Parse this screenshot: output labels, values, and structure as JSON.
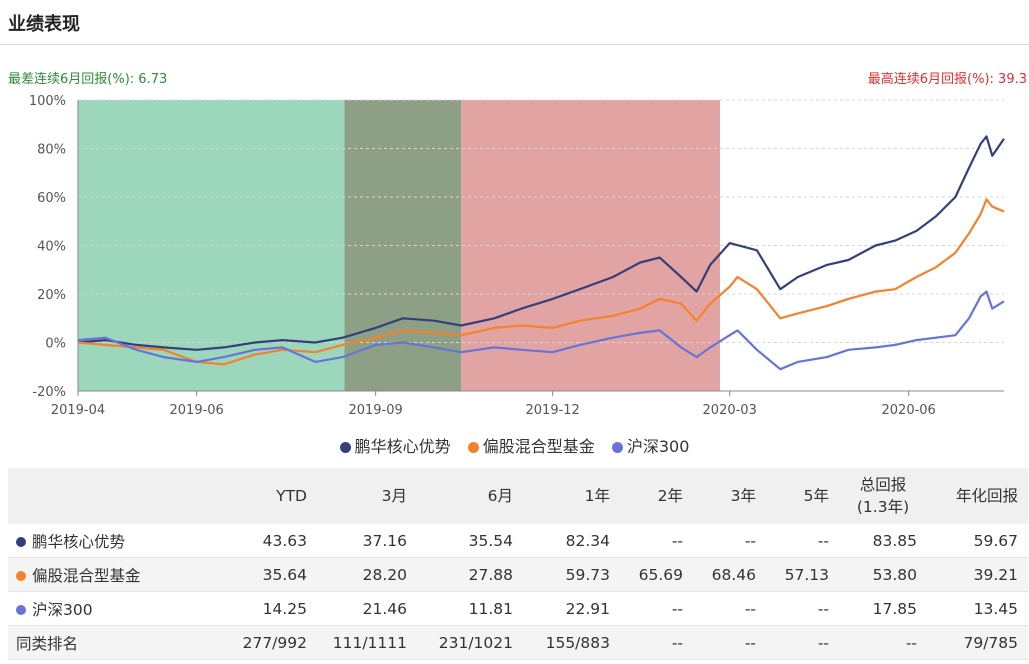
{
  "section_title": "业绩表现",
  "stats": {
    "worst_6m_label": "最差连续6月回报(%):",
    "worst_6m_value": "6.73",
    "best_6m_label": "最高连续6月回报(%):",
    "best_6m_value": "39.3"
  },
  "colors": {
    "fund": "#33407a",
    "peer": "#f5822a",
    "index": "#6674d8",
    "band_green": "#9dd7bb",
    "band_olive": "#8da085",
    "band_red": "#e2a3a3"
  },
  "chart_data": {
    "type": "line",
    "y_ticks": [
      "100%",
      "80%",
      "60%",
      "40%",
      "20%",
      "0%",
      "-20%"
    ],
    "y_tick_values": [
      100,
      80,
      60,
      40,
      20,
      0,
      -20
    ],
    "ylim": [
      -20,
      100
    ],
    "xlim": [
      "2019-04-01",
      "2020-07-20"
    ],
    "x_tick_labels": [
      "2019-04",
      "2019-06",
      "2019-09",
      "2019-12",
      "2020-03",
      "2020-06"
    ],
    "x_tick_dates": [
      "2019-04-01",
      "2019-06-01",
      "2019-09-01",
      "2019-12-01",
      "2020-03-01",
      "2020-06-01"
    ],
    "grid": true,
    "highlight_bands": [
      {
        "from": "2019-04-01",
        "to": "2019-08-16",
        "color": "#9dd7bb"
      },
      {
        "from": "2019-08-16",
        "to": "2019-10-15",
        "color": "#8da085"
      },
      {
        "from": "2019-10-15",
        "to": "2020-02-25",
        "color": "#e2a3a3"
      }
    ],
    "series": [
      {
        "name": "鹏华核心优势",
        "color": "#33407a",
        "points": [
          [
            "2019-04-01",
            0
          ],
          [
            "2019-04-15",
            1
          ],
          [
            "2019-05-01",
            -1
          ],
          [
            "2019-05-15",
            -2
          ],
          [
            "2019-06-01",
            -3
          ],
          [
            "2019-06-15",
            -2
          ],
          [
            "2019-07-01",
            0
          ],
          [
            "2019-07-15",
            1
          ],
          [
            "2019-08-01",
            0
          ],
          [
            "2019-08-15",
            2
          ],
          [
            "2019-09-01",
            6
          ],
          [
            "2019-09-15",
            10
          ],
          [
            "2019-10-01",
            9
          ],
          [
            "2019-10-15",
            7
          ],
          [
            "2019-11-01",
            10
          ],
          [
            "2019-11-15",
            14
          ],
          [
            "2019-12-01",
            18
          ],
          [
            "2019-12-15",
            22
          ],
          [
            "2020-01-01",
            27
          ],
          [
            "2020-01-15",
            33
          ],
          [
            "2020-01-25",
            35
          ],
          [
            "2020-02-05",
            27
          ],
          [
            "2020-02-13",
            21
          ],
          [
            "2020-02-20",
            32
          ],
          [
            "2020-03-01",
            41
          ],
          [
            "2020-03-15",
            38
          ],
          [
            "2020-03-27",
            22
          ],
          [
            "2020-04-05",
            27
          ],
          [
            "2020-04-20",
            32
          ],
          [
            "2020-05-01",
            34
          ],
          [
            "2020-05-15",
            40
          ],
          [
            "2020-05-25",
            42
          ],
          [
            "2020-06-05",
            46
          ],
          [
            "2020-06-15",
            52
          ],
          [
            "2020-06-25",
            60
          ],
          [
            "2020-07-02",
            72
          ],
          [
            "2020-07-08",
            82
          ],
          [
            "2020-07-11",
            85
          ],
          [
            "2020-07-14",
            77
          ],
          [
            "2020-07-20",
            84
          ]
        ]
      },
      {
        "name": "偏股混合型基金",
        "color": "#f5822a",
        "points": [
          [
            "2019-04-01",
            0
          ],
          [
            "2019-04-15",
            -1
          ],
          [
            "2019-05-01",
            -2
          ],
          [
            "2019-05-15",
            -3
          ],
          [
            "2019-06-01",
            -8
          ],
          [
            "2019-06-15",
            -9
          ],
          [
            "2019-07-01",
            -5
          ],
          [
            "2019-07-15",
            -3
          ],
          [
            "2019-08-01",
            -4
          ],
          [
            "2019-08-15",
            -1
          ],
          [
            "2019-09-01",
            2
          ],
          [
            "2019-09-15",
            5
          ],
          [
            "2019-10-01",
            4
          ],
          [
            "2019-10-15",
            3
          ],
          [
            "2019-11-01",
            6
          ],
          [
            "2019-11-15",
            7
          ],
          [
            "2019-12-01",
            6
          ],
          [
            "2019-12-15",
            9
          ],
          [
            "2020-01-01",
            11
          ],
          [
            "2020-01-15",
            14
          ],
          [
            "2020-01-25",
            18
          ],
          [
            "2020-02-05",
            16
          ],
          [
            "2020-02-13",
            9
          ],
          [
            "2020-02-20",
            16
          ],
          [
            "2020-03-01",
            23
          ],
          [
            "2020-03-05",
            27
          ],
          [
            "2020-03-15",
            22
          ],
          [
            "2020-03-27",
            10
          ],
          [
            "2020-04-05",
            12
          ],
          [
            "2020-04-20",
            15
          ],
          [
            "2020-05-01",
            18
          ],
          [
            "2020-05-15",
            21
          ],
          [
            "2020-05-25",
            22
          ],
          [
            "2020-06-05",
            27
          ],
          [
            "2020-06-15",
            31
          ],
          [
            "2020-06-25",
            37
          ],
          [
            "2020-07-02",
            45
          ],
          [
            "2020-07-08",
            53
          ],
          [
            "2020-07-11",
            59
          ],
          [
            "2020-07-14",
            56
          ],
          [
            "2020-07-20",
            54
          ]
        ]
      },
      {
        "name": "沪深300",
        "color": "#6674d8",
        "points": [
          [
            "2019-04-01",
            1
          ],
          [
            "2019-04-15",
            2
          ],
          [
            "2019-05-01",
            -3
          ],
          [
            "2019-05-15",
            -6
          ],
          [
            "2019-06-01",
            -8
          ],
          [
            "2019-06-15",
            -6
          ],
          [
            "2019-07-01",
            -3
          ],
          [
            "2019-07-15",
            -2
          ],
          [
            "2019-08-01",
            -8
          ],
          [
            "2019-08-15",
            -6
          ],
          [
            "2019-09-01",
            -1
          ],
          [
            "2019-09-15",
            0
          ],
          [
            "2019-10-01",
            -2
          ],
          [
            "2019-10-15",
            -4
          ],
          [
            "2019-11-01",
            -2
          ],
          [
            "2019-11-15",
            -3
          ],
          [
            "2019-12-01",
            -4
          ],
          [
            "2019-12-15",
            -1
          ],
          [
            "2020-01-01",
            2
          ],
          [
            "2020-01-15",
            4
          ],
          [
            "2020-01-25",
            5
          ],
          [
            "2020-02-05",
            -2
          ],
          [
            "2020-02-13",
            -6
          ],
          [
            "2020-02-20",
            -2
          ],
          [
            "2020-03-01",
            3
          ],
          [
            "2020-03-05",
            5
          ],
          [
            "2020-03-15",
            -3
          ],
          [
            "2020-03-27",
            -11
          ],
          [
            "2020-04-05",
            -8
          ],
          [
            "2020-04-20",
            -6
          ],
          [
            "2020-05-01",
            -3
          ],
          [
            "2020-05-15",
            -2
          ],
          [
            "2020-05-25",
            -1
          ],
          [
            "2020-06-05",
            1
          ],
          [
            "2020-06-15",
            2
          ],
          [
            "2020-06-25",
            3
          ],
          [
            "2020-07-02",
            10
          ],
          [
            "2020-07-08",
            19
          ],
          [
            "2020-07-11",
            21
          ],
          [
            "2020-07-14",
            14
          ],
          [
            "2020-07-20",
            17
          ]
        ]
      }
    ]
  },
  "table": {
    "headers": [
      "",
      "YTD",
      "3月",
      "6月",
      "1年",
      "2年",
      "3年",
      "5年",
      "总回报",
      "(1.3年)",
      "年化回报"
    ],
    "rows": [
      {
        "name": "鹏华核心优势",
        "color": "#33407a",
        "values": [
          "43.63",
          "37.16",
          "35.54",
          "82.34",
          "--",
          "--",
          "--",
          "83.85",
          "59.67"
        ]
      },
      {
        "name": "偏股混合型基金",
        "color": "#f5822a",
        "values": [
          "35.64",
          "28.20",
          "27.88",
          "59.73",
          "65.69",
          "68.46",
          "57.13",
          "53.80",
          "39.21"
        ]
      },
      {
        "name": "沪深300",
        "color": "#6674d8",
        "values": [
          "14.25",
          "21.46",
          "11.81",
          "22.91",
          "--",
          "--",
          "--",
          "17.85",
          "13.45"
        ]
      },
      {
        "name": "同类排名",
        "color": "",
        "values": [
          "277/992",
          "111/1111",
          "231/1021",
          "155/883",
          "--",
          "--",
          "--",
          "--",
          "79/785"
        ]
      }
    ]
  }
}
